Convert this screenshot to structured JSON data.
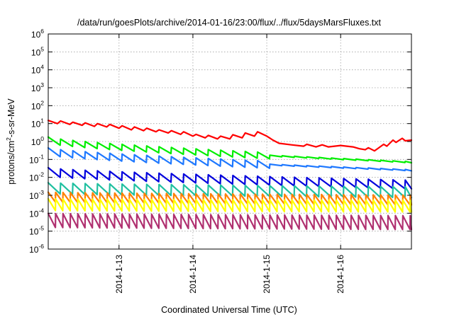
{
  "chart_data": {
    "type": "line",
    "title": "/data/run/goesPlots/archive/2014-01-16/23:00/flux/../flux/5daysMarsFluxes.txt",
    "xlabel": "Coordinated Universal Time (UTC)",
    "ylabel": "protons/cm2-s-sr-MeV",
    "yscale": "log",
    "ylim": [
      1e-06,
      1000000.0
    ],
    "xlim": [
      "2014-01-12 01:00",
      "2014-01-16 23:00"
    ],
    "y_ticks": [
      {
        "value": 1e-06,
        "base": "10",
        "exp": "-6"
      },
      {
        "value": 1e-05,
        "base": "10",
        "exp": "-5"
      },
      {
        "value": 0.0001,
        "base": "10",
        "exp": "-4"
      },
      {
        "value": 0.001,
        "base": "10",
        "exp": "-3"
      },
      {
        "value": 0.01,
        "base": "10",
        "exp": "-2"
      },
      {
        "value": 0.1,
        "base": "10",
        "exp": "-1"
      },
      {
        "value": 1,
        "base": "10",
        "exp": "0"
      },
      {
        "value": 10,
        "base": "10",
        "exp": "1"
      },
      {
        "value": 100,
        "base": "10",
        "exp": "2"
      },
      {
        "value": 1000,
        "base": "10",
        "exp": "3"
      },
      {
        "value": 10000,
        "base": "10",
        "exp": "4"
      },
      {
        "value": 100000,
        "base": "10",
        "exp": "5"
      },
      {
        "value": 1000000,
        "base": "10",
        "exp": "6"
      }
    ],
    "x_ticks": [
      {
        "value": "2014-01-13",
        "label": "2014-1-13"
      },
      {
        "value": "2014-01-14",
        "label": "2014-1-14"
      },
      {
        "value": "2014-01-15",
        "label": "2014-1-15"
      },
      {
        "value": "2014-01-16",
        "label": "2014-1-16"
      }
    ],
    "grid": true,
    "series": [
      {
        "color": "#ff0000",
        "points": [
          [
            "2014-01-12 01:00",
            15
          ],
          [
            "2014-01-12 04:00",
            10
          ],
          [
            "2014-01-12 05:00",
            14
          ],
          [
            "2014-01-12 08:00",
            9
          ],
          [
            "2014-01-12 09:00",
            12
          ],
          [
            "2014-01-12 12:00",
            8
          ],
          [
            "2014-01-12 13:00",
            11
          ],
          [
            "2014-01-12 16:00",
            7
          ],
          [
            "2014-01-12 17:00",
            10
          ],
          [
            "2014-01-12 20:00",
            6.5
          ],
          [
            "2014-01-12 21:00",
            9
          ],
          [
            "2014-01-13 00:00",
            5.5
          ],
          [
            "2014-01-13 01:00",
            7.5
          ],
          [
            "2014-01-13 04:00",
            4.5
          ],
          [
            "2014-01-13 05:00",
            6.5
          ],
          [
            "2014-01-13 08:00",
            4
          ],
          [
            "2014-01-13 09:00",
            5.5
          ],
          [
            "2014-01-13 12:00",
            3.5
          ],
          [
            "2014-01-13 13:00",
            4.5
          ],
          [
            "2014-01-13 16:00",
            3
          ],
          [
            "2014-01-13 17:00",
            4
          ],
          [
            "2014-01-13 20:00",
            2.5
          ],
          [
            "2014-01-13 21:00",
            3.5
          ],
          [
            "2014-01-14 00:00",
            2
          ],
          [
            "2014-01-14 01:00",
            2.5
          ],
          [
            "2014-01-14 04:00",
            1.6
          ],
          [
            "2014-01-14 05:00",
            2.2
          ],
          [
            "2014-01-14 08:00",
            1.4
          ],
          [
            "2014-01-14 09:00",
            2
          ],
          [
            "2014-01-14 12:00",
            1.4
          ],
          [
            "2014-01-14 13:00",
            2.4
          ],
          [
            "2014-01-14 16:00",
            1.6
          ],
          [
            "2014-01-14 17:00",
            3
          ],
          [
            "2014-01-14 20:00",
            2
          ],
          [
            "2014-01-14 21:00",
            3.5
          ],
          [
            "2014-01-15 00:00",
            2
          ],
          [
            "2014-01-15 02:00",
            1.2
          ],
          [
            "2014-01-15 04:00",
            0.8
          ],
          [
            "2014-01-15 08:00",
            0.65
          ],
          [
            "2014-01-15 12:00",
            0.55
          ],
          [
            "2014-01-15 13:00",
            0.7
          ],
          [
            "2014-01-15 16:00",
            0.5
          ],
          [
            "2014-01-15 18:00",
            0.65
          ],
          [
            "2014-01-15 20:00",
            0.5
          ],
          [
            "2014-01-16 00:00",
            0.6
          ],
          [
            "2014-01-16 04:00",
            0.5
          ],
          [
            "2014-01-16 06:00",
            0.4
          ],
          [
            "2014-01-16 08:00",
            0.35
          ],
          [
            "2014-01-16 09:00",
            0.45
          ],
          [
            "2014-01-16 11:00",
            0.3
          ],
          [
            "2014-01-16 12:00",
            0.4
          ],
          [
            "2014-01-16 14:00",
            0.7
          ],
          [
            "2014-01-16 15:00",
            0.55
          ],
          [
            "2014-01-16 17:00",
            1.2
          ],
          [
            "2014-01-16 18:00",
            0.9
          ],
          [
            "2014-01-16 20:00",
            1.5
          ],
          [
            "2014-01-16 21:00",
            1.1
          ],
          [
            "2014-01-16 23:00",
            1.2
          ]
        ]
      },
      {
        "color": "#00ee00",
        "pattern": {
          "start": 1.2,
          "end": 0.07,
          "amp": 2.2,
          "period_hours": 4,
          "flatten_after": "2014-01-15 00:00"
        }
      },
      {
        "color": "#1e78ff",
        "pattern": {
          "start": 0.28,
          "end": 0.025,
          "amp": 2.5,
          "period_hours": 4,
          "flatten_after": "2014-01-15 00:00"
        }
      },
      {
        "color": "#0000dd",
        "pattern": {
          "start": 0.02,
          "end": 0.004,
          "amp": 3,
          "period_hours": 4
        }
      },
      {
        "color": "#20c0a0",
        "pattern": {
          "start": 0.0025,
          "end": 0.0015,
          "amp": 4,
          "period_hours": 4
        }
      },
      {
        "color": "#ff8000",
        "pattern": {
          "start": 0.0008,
          "end": 0.00055,
          "amp": 3.5,
          "period_hours": 2.4
        }
      },
      {
        "color": "#ffff00",
        "pattern": {
          "start": 0.0003,
          "end": 0.00025,
          "amp": 4.5,
          "period_hours": 2.4
        }
      },
      {
        "color": "#b03070",
        "pattern": {
          "start": 4e-05,
          "end": 3e-05,
          "amp": 6,
          "period_hours": 2.4
        }
      }
    ]
  }
}
